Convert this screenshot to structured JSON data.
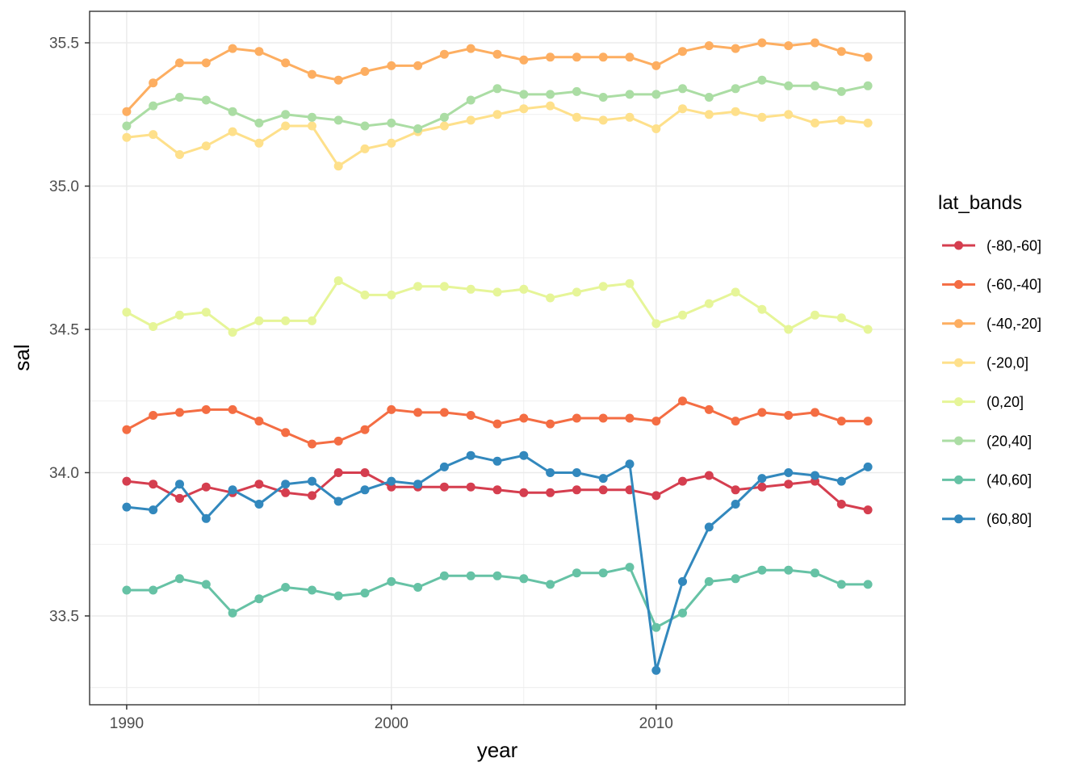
{
  "chart_data": {
    "type": "line",
    "title": "",
    "xlabel": "year",
    "ylabel": "sal",
    "legend_title": "lat_bands",
    "legend_position": "right",
    "grid": "on",
    "xlim": [
      1988.6,
      2019.4
    ],
    "ylim": [
      33.19,
      35.61
    ],
    "x_ticks": {
      "values": [
        1990,
        2000,
        2010
      ],
      "labels": [
        "1990",
        "2000",
        "2010"
      ]
    },
    "x_minor_gridlines": [
      1995,
      2005,
      2015
    ],
    "y_ticks": {
      "values": [
        33.5,
        34.0,
        34.5,
        35.0,
        35.5
      ],
      "labels": [
        "33.5",
        "34.0",
        "34.5",
        "35.0",
        "35.5"
      ]
    },
    "y_minor_gridlines": [
      33.25,
      33.75,
      34.25,
      34.75,
      35.25
    ],
    "x": [
      1990,
      1991,
      1992,
      1993,
      1994,
      1995,
      1996,
      1997,
      1998,
      1999,
      2000,
      2001,
      2002,
      2003,
      2004,
      2005,
      2006,
      2007,
      2008,
      2009,
      2010,
      2011,
      2012,
      2013,
      2014,
      2015,
      2016,
      2017,
      2018
    ],
    "series": [
      {
        "name": "(-80,-60]",
        "color": "#D53E4F",
        "values": [
          33.97,
          33.96,
          33.91,
          33.95,
          33.93,
          33.96,
          33.93,
          33.92,
          34.0,
          34.0,
          33.95,
          33.95,
          33.95,
          33.95,
          33.94,
          33.93,
          33.93,
          33.94,
          33.94,
          33.94,
          33.92,
          33.97,
          33.99,
          33.94,
          33.95,
          33.96,
          33.97,
          33.89,
          33.87
        ]
      },
      {
        "name": "(-60,-40]",
        "color": "#F46D43",
        "values": [
          34.15,
          34.2,
          34.21,
          34.22,
          34.22,
          34.18,
          34.14,
          34.1,
          34.11,
          34.15,
          34.22,
          34.21,
          34.21,
          34.2,
          34.17,
          34.19,
          34.17,
          34.19,
          34.19,
          34.19,
          34.18,
          34.25,
          34.22,
          34.18,
          34.21,
          34.2,
          34.21,
          34.18,
          34.18
        ]
      },
      {
        "name": "(-40,-20]",
        "color": "#FDAE61",
        "values": [
          35.26,
          35.36,
          35.43,
          35.43,
          35.48,
          35.47,
          35.43,
          35.39,
          35.37,
          35.4,
          35.42,
          35.42,
          35.46,
          35.48,
          35.46,
          35.44,
          35.45,
          35.45,
          35.45,
          35.45,
          35.42,
          35.47,
          35.49,
          35.48,
          35.5,
          35.49,
          35.5,
          35.47,
          35.45
        ]
      },
      {
        "name": "(-20,0]",
        "color": "#FEE08B",
        "values": [
          35.17,
          35.18,
          35.11,
          35.14,
          35.19,
          35.15,
          35.21,
          35.21,
          35.07,
          35.13,
          35.15,
          35.19,
          35.21,
          35.23,
          35.25,
          35.27,
          35.28,
          35.24,
          35.23,
          35.24,
          35.2,
          35.27,
          35.25,
          35.26,
          35.24,
          35.25,
          35.22,
          35.23,
          35.22
        ]
      },
      {
        "name": "(0,20]",
        "color": "#E6F598",
        "values": [
          34.56,
          34.51,
          34.55,
          34.56,
          34.49,
          34.53,
          34.53,
          34.53,
          34.67,
          34.62,
          34.62,
          34.65,
          34.65,
          34.64,
          34.63,
          34.64,
          34.61,
          34.63,
          34.65,
          34.66,
          34.52,
          34.55,
          34.59,
          34.63,
          34.57,
          34.5,
          34.55,
          34.54,
          34.5
        ]
      },
      {
        "name": "(20,40]",
        "color": "#ABDDA4",
        "values": [
          35.21,
          35.28,
          35.31,
          35.3,
          35.26,
          35.22,
          35.25,
          35.24,
          35.23,
          35.21,
          35.22,
          35.2,
          35.24,
          35.3,
          35.34,
          35.32,
          35.32,
          35.33,
          35.31,
          35.32,
          35.32,
          35.34,
          35.31,
          35.34,
          35.37,
          35.35,
          35.35,
          35.33,
          35.35
        ]
      },
      {
        "name": "(40,60]",
        "color": "#66C2A5",
        "values": [
          33.59,
          33.59,
          33.63,
          33.61,
          33.51,
          33.56,
          33.6,
          33.59,
          33.57,
          33.58,
          33.62,
          33.6,
          33.64,
          33.64,
          33.64,
          33.63,
          33.61,
          33.65,
          33.65,
          33.67,
          33.46,
          33.51,
          33.62,
          33.63,
          33.66,
          33.66,
          33.65,
          33.61,
          33.61
        ]
      },
      {
        "name": "(60,80]",
        "color": "#3288BD",
        "values": [
          33.88,
          33.87,
          33.96,
          33.84,
          33.94,
          33.89,
          33.96,
          33.97,
          33.9,
          33.94,
          33.97,
          33.96,
          34.02,
          34.06,
          34.04,
          34.06,
          34.0,
          34.0,
          33.98,
          34.03,
          33.31,
          33.62,
          33.81,
          33.89,
          33.98,
          34.0,
          33.99,
          33.97,
          34.02
        ]
      }
    ],
    "style": {
      "panel_border_color": "#333333",
      "gridline_color": "#EBEBEB",
      "tick_mark_color": "#333333",
      "tick_label_color": "#4D4D4D",
      "background": "#FFFFFF"
    }
  }
}
